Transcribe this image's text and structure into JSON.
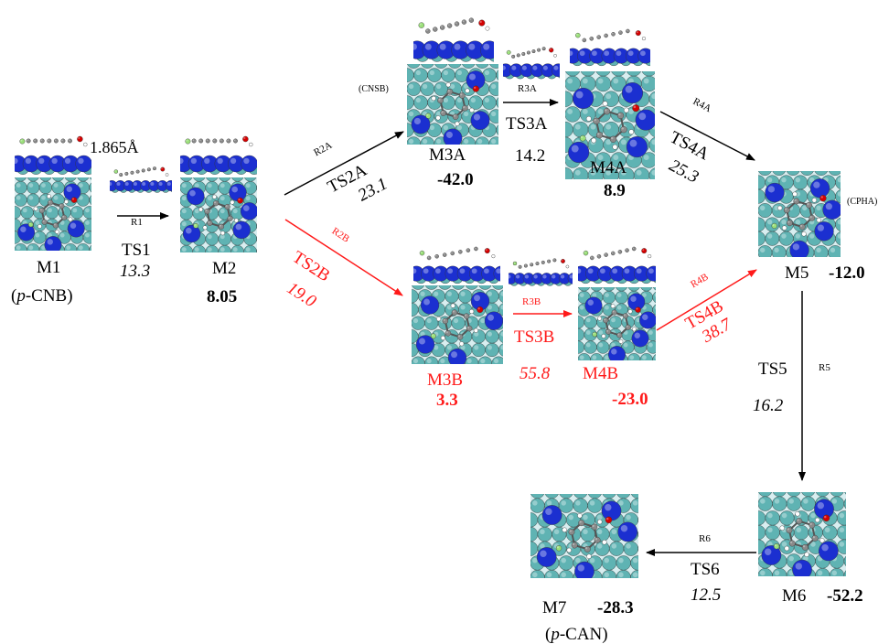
{
  "species": {
    "M1": {
      "label": "M1",
      "note": "(p-CNB)",
      "note_prefix": "(",
      "note_italic": "p",
      "note_suffix": "-CNB)",
      "distance": "1.865Å"
    },
    "M2": {
      "label": "M2",
      "energy": "8.05"
    },
    "M3A": {
      "label": "M3A",
      "energy": "-42.0",
      "tag": "(CNSB)"
    },
    "M4A": {
      "label": "M4A",
      "energy": "8.9"
    },
    "M3B": {
      "label": "M3B",
      "energy": "3.3"
    },
    "M4B": {
      "label": "M4B",
      "energy": "-23.0"
    },
    "M5": {
      "label": "M5",
      "energy": "-12.0",
      "tag": "(CPHA)"
    },
    "M6": {
      "label": "M6",
      "energy": "-52.2"
    },
    "M7": {
      "label": "M7",
      "energy": "-28.3",
      "note_prefix": "(",
      "note_italic": "p",
      "note_suffix": "-CAN)"
    }
  },
  "steps": {
    "R1": {
      "reaction": "R1",
      "ts": "TS1",
      "barrier": "13.3"
    },
    "R2A": {
      "reaction": "R2A",
      "ts": "TS2A",
      "barrier": "23.1"
    },
    "R3A": {
      "reaction": "R3A",
      "ts": "TS3A",
      "barrier": "14.2"
    },
    "R4A": {
      "reaction": "R4A",
      "ts": "TS4A",
      "barrier": "25.3"
    },
    "R2B": {
      "reaction": "R2B",
      "ts": "TS2B",
      "barrier": "19.0"
    },
    "R3B": {
      "reaction": "R3B",
      "ts": "TS3B",
      "barrier": "55.8"
    },
    "R4B": {
      "reaction": "R4B",
      "ts": "TS4B",
      "barrier": "38.7"
    },
    "R5": {
      "reaction": "R5",
      "ts": "TS5",
      "barrier": "16.2"
    },
    "R6": {
      "reaction": "R6",
      "ts": "TS6",
      "barrier": "12.5"
    }
  },
  "colors": {
    "path_a": "#000000",
    "path_b": "#ff1a1a",
    "atom_metal": "#1b2fd0",
    "atom_support": "#5fb3b3",
    "atom_carbon": "#8a8a8a",
    "atom_oxygen": "#d40000",
    "atom_hydrogen": "#ffffff",
    "atom_chlorine": "#9be07a"
  }
}
